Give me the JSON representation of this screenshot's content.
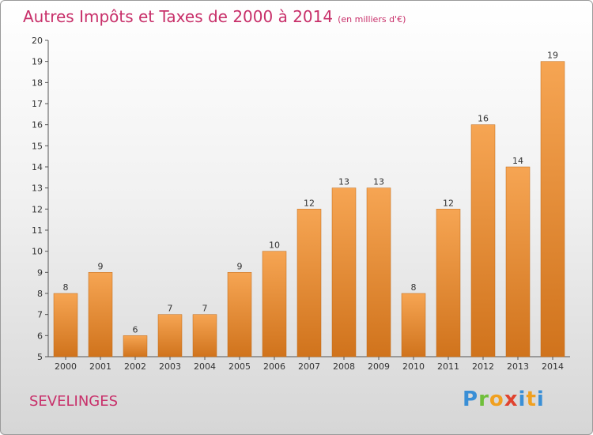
{
  "title": "Autres Impôts et Taxes de 2000 à 2014",
  "unit": "(en milliers d'€)",
  "commune": "SEVELINGES",
  "logo": {
    "p": "P",
    "r": "r",
    "o": "o",
    "x": "x",
    "i": "i",
    "t": "t",
    "i2": "i"
  },
  "colors": {
    "bar_light": "#f6a553",
    "bar_dark": "#d0731c",
    "title": "#c8306a"
  },
  "chart_data": {
    "type": "bar",
    "categories": [
      "2000",
      "2001",
      "2002",
      "2003",
      "2004",
      "2005",
      "2006",
      "2007",
      "2008",
      "2009",
      "2010",
      "2011",
      "2012",
      "2013",
      "2014"
    ],
    "values": [
      8,
      9,
      6,
      7,
      7,
      9,
      10,
      12,
      13,
      13,
      8,
      12,
      16,
      14,
      19
    ],
    "title": "Autres Impôts et Taxes de 2000 à 2014",
    "ylim": [
      5,
      20
    ],
    "yticks": [
      5,
      6,
      7,
      8,
      9,
      10,
      11,
      12,
      13,
      14,
      15,
      16,
      17,
      18,
      19,
      20
    ],
    "grid": false
  }
}
